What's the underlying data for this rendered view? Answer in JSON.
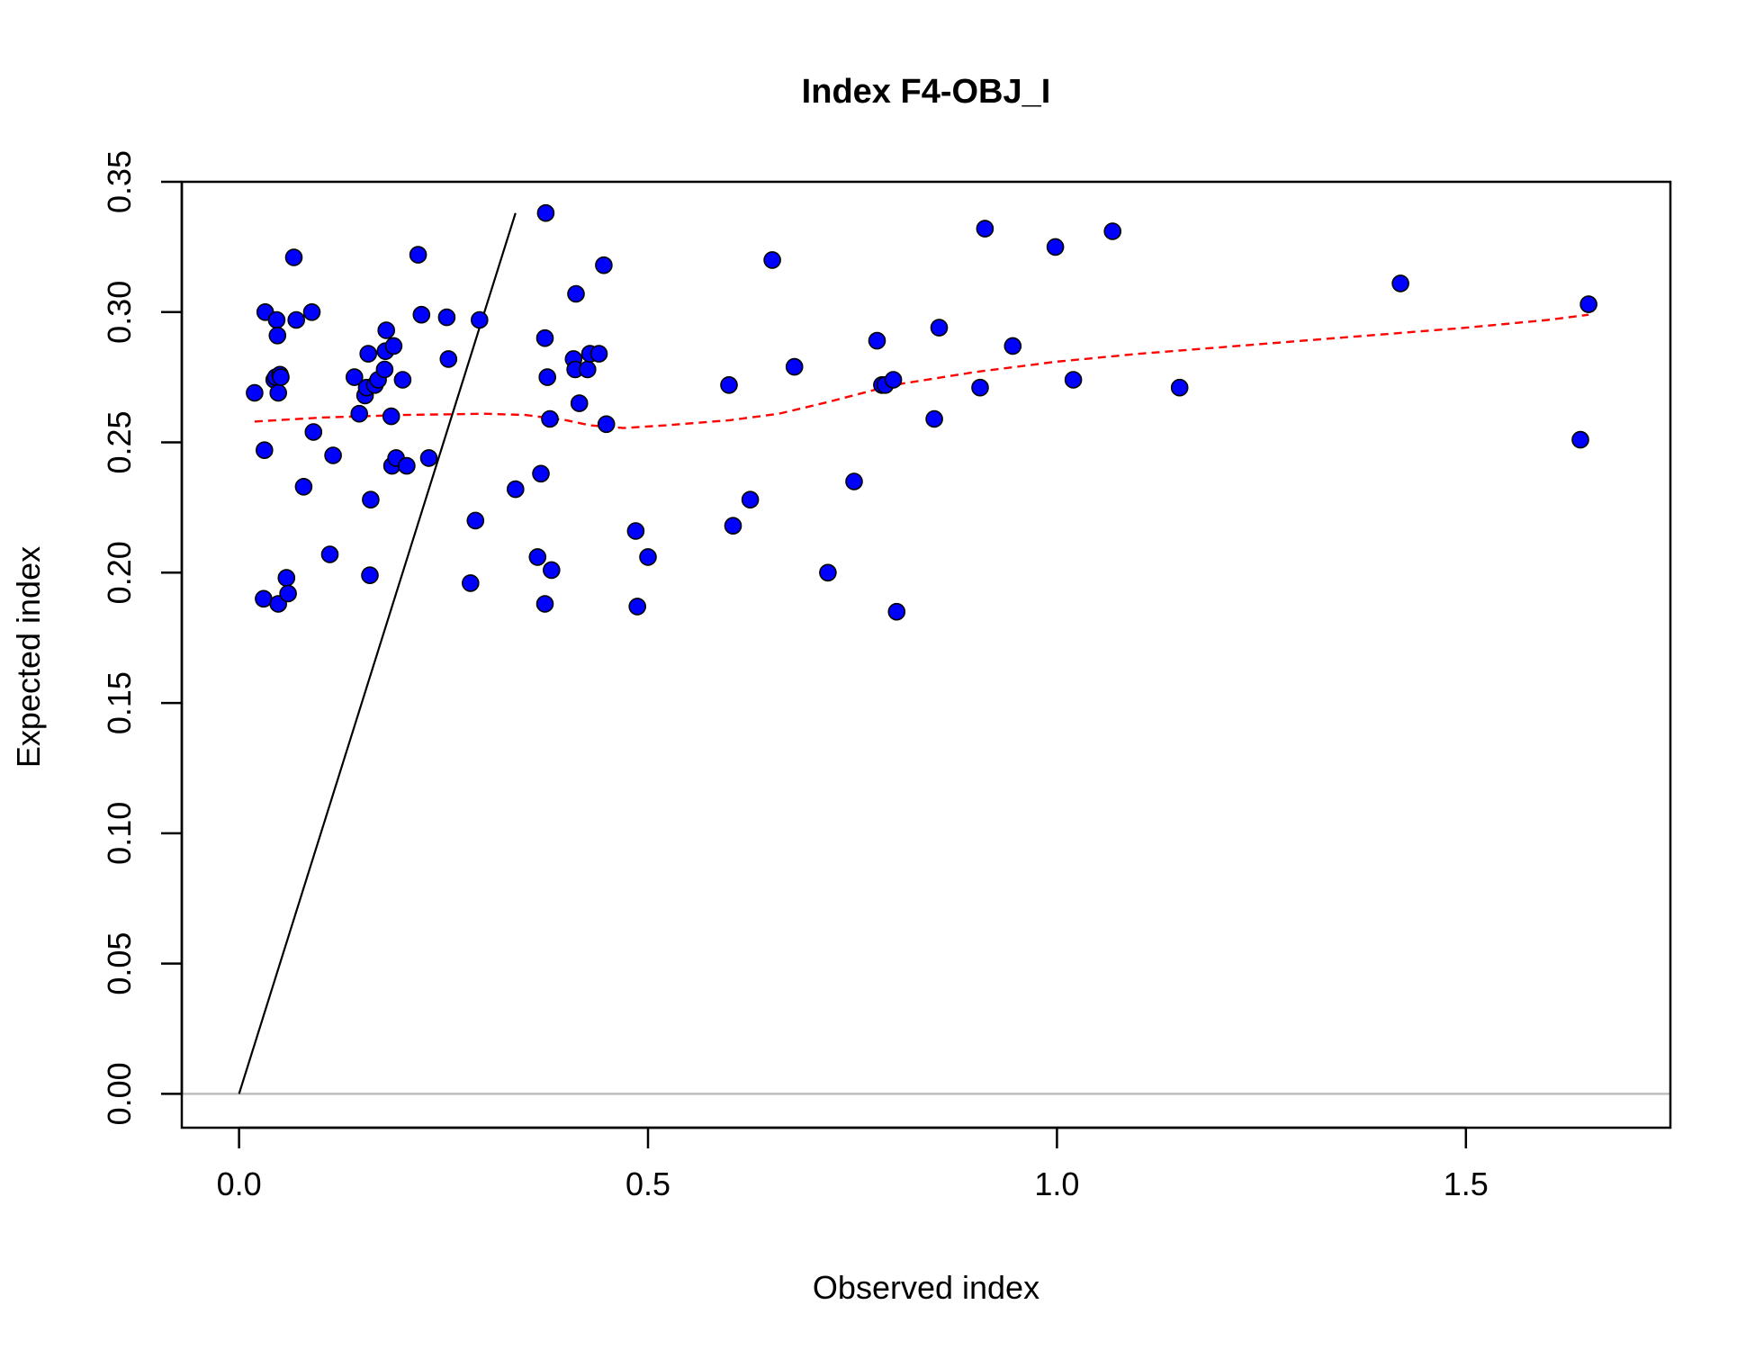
{
  "chart_data": {
    "type": "scatter",
    "title": "Index F4-OBJ_I",
    "xlabel": "Observed index",
    "ylabel": "Expected index",
    "xlim": [
      -0.07,
      1.75
    ],
    "ylim": [
      -0.013,
      0.35
    ],
    "x_ticks": [
      0.0,
      0.5,
      1.0,
      1.5
    ],
    "x_tick_labels": [
      "0.0",
      "0.5",
      "1.0",
      "1.5"
    ],
    "y_ticks": [
      0.0,
      0.05,
      0.1,
      0.15,
      0.2,
      0.25,
      0.3,
      0.35
    ],
    "y_tick_labels": [
      "0.00",
      "0.05",
      "0.10",
      "0.15",
      "0.20",
      "0.25",
      "0.30",
      "0.35"
    ],
    "grid": false,
    "legend": "none",
    "colors": {
      "points": "#0000ff",
      "point_outline": "#000000",
      "smoother": "#ff0000",
      "identity_line": "#000000",
      "zero_line": "#bebebe"
    },
    "points": {
      "x": [
        0.019,
        0.03,
        0.031,
        0.032,
        0.043,
        0.045,
        0.046,
        0.047,
        0.048,
        0.048,
        0.05,
        0.051,
        0.058,
        0.06,
        0.067,
        0.07,
        0.079,
        0.089,
        0.091,
        0.111,
        0.115,
        0.141,
        0.147,
        0.154,
        0.156,
        0.158,
        0.16,
        0.161,
        0.166,
        0.17,
        0.178,
        0.179,
        0.18,
        0.186,
        0.187,
        0.189,
        0.192,
        0.2,
        0.205,
        0.219,
        0.223,
        0.232,
        0.254,
        0.256,
        0.283,
        0.289,
        0.294,
        0.338,
        0.365,
        0.369,
        0.374,
        0.374,
        0.375,
        0.377,
        0.38,
        0.382,
        0.409,
        0.411,
        0.412,
        0.416,
        0.426,
        0.429,
        0.44,
        0.446,
        0.449,
        0.485,
        0.487,
        0.5,
        0.599,
        0.604,
        0.625,
        0.652,
        0.679,
        0.72,
        0.752,
        0.78,
        0.786,
        0.79,
        0.8,
        0.804,
        0.85,
        0.856,
        0.906,
        0.912,
        0.946,
        0.998,
        1.02,
        1.068,
        1.15,
        1.42,
        1.64,
        1.65
      ],
      "y": [
        0.269,
        0.19,
        0.247,
        0.3,
        0.274,
        0.275,
        0.297,
        0.291,
        0.269,
        0.188,
        0.276,
        0.275,
        0.198,
        0.192,
        0.321,
        0.297,
        0.233,
        0.3,
        0.254,
        0.207,
        0.245,
        0.275,
        0.261,
        0.268,
        0.271,
        0.284,
        0.199,
        0.228,
        0.272,
        0.274,
        0.278,
        0.285,
        0.293,
        0.26,
        0.241,
        0.287,
        0.244,
        0.274,
        0.241,
        0.322,
        0.299,
        0.244,
        0.298,
        0.282,
        0.196,
        0.22,
        0.297,
        0.232,
        0.206,
        0.238,
        0.188,
        0.29,
        0.338,
        0.275,
        0.259,
        0.201,
        0.282,
        0.278,
        0.307,
        0.265,
        0.278,
        0.284,
        0.284,
        0.318,
        0.257,
        0.216,
        0.187,
        0.206,
        0.272,
        0.218,
        0.228,
        0.32,
        0.279,
        0.2,
        0.235,
        0.289,
        0.272,
        0.272,
        0.274,
        0.185,
        0.259,
        0.294,
        0.271,
        0.332,
        0.287,
        0.325,
        0.274,
        0.331,
        0.271,
        0.311,
        0.251,
        0.303
      ]
    },
    "smoother": {
      "x": [
        0.019,
        0.1,
        0.2,
        0.3,
        0.35,
        0.4,
        0.43,
        0.47,
        0.52,
        0.6,
        0.66,
        0.72,
        0.8,
        0.9,
        1.0,
        1.1,
        1.2,
        1.3,
        1.4,
        1.5,
        1.6,
        1.65
      ],
      "y": [
        0.258,
        0.2595,
        0.2605,
        0.261,
        0.2605,
        0.2585,
        0.2565,
        0.2555,
        0.2565,
        0.2585,
        0.261,
        0.2655,
        0.272,
        0.277,
        0.281,
        0.284,
        0.2865,
        0.289,
        0.2915,
        0.294,
        0.297,
        0.299
      ]
    },
    "identity_line": {
      "x": [
        0.0,
        0.338
      ],
      "y": [
        0.0,
        0.338
      ]
    },
    "zero_line": {
      "y": 0.0
    }
  }
}
